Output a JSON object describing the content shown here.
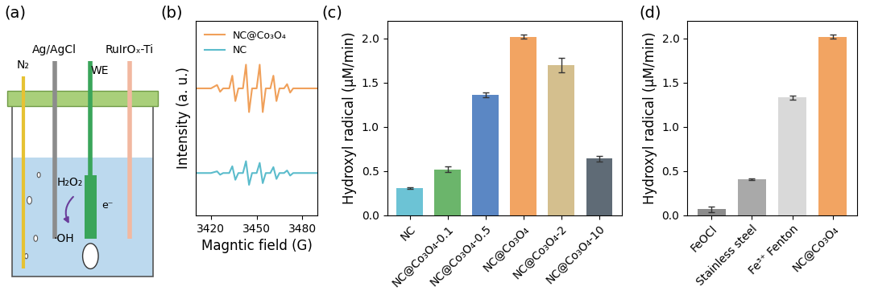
{
  "chart_data": [
    {
      "type": "diagram",
      "title": "(a)",
      "labels": {
        "gas": "N₂",
        "reference": "Ag/AgCl",
        "working": "WE",
        "counter": "RuIrOₓ-Ti",
        "reactant": "H₂O₂",
        "electron": "e⁻",
        "product": "·OH"
      }
    },
    {
      "type": "line",
      "title": "(b)",
      "x_label": "Magntic field (G)",
      "y_label": "Intensity (a. u.)",
      "x": [
        3410,
        3420,
        3424,
        3426,
        3428,
        3432,
        3434,
        3436,
        3438,
        3441,
        3443,
        3445,
        3447,
        3450,
        3452,
        3454,
        3456,
        3459,
        3461,
        3463,
        3465,
        3468,
        3470,
        3472,
        3474,
        3480,
        3490
      ],
      "series": [
        {
          "name": "NC@Co₃O₄",
          "color": "#f0a05a",
          "values": [
            1.0,
            1.0,
            1.04,
            0.96,
            1.0,
            1.0,
            1.15,
            0.85,
            1.0,
            1.0,
            1.28,
            0.72,
            1.0,
            1.0,
            1.28,
            0.72,
            1.0,
            1.0,
            1.15,
            0.85,
            1.0,
            1.0,
            1.05,
            0.95,
            1.0,
            1.0,
            1.0
          ]
        },
        {
          "name": "NC",
          "color": "#5bbccc",
          "values": [
            0.0,
            0.0,
            0.02,
            -0.02,
            0.0,
            0.0,
            0.08,
            -0.08,
            0.0,
            0.0,
            0.14,
            -0.14,
            0.0,
            0.0,
            0.12,
            -0.12,
            0.0,
            0.0,
            0.07,
            -0.07,
            0.0,
            0.0,
            0.03,
            -0.03,
            0.0,
            0.0,
            0.0
          ]
        }
      ],
      "xlim": [
        3410,
        3490
      ],
      "xticks": [
        3420,
        3450,
        3480
      ],
      "ylim": [
        -0.5,
        1.8
      ],
      "tick_labels": "x",
      "legend": "upper left"
    },
    {
      "type": "bar",
      "title": "(c)",
      "y_label": "Hydroxyl radical (μM/min)",
      "categories": [
        "NC",
        "NC@Co₃O₄-0.1",
        "NC@Co₃O₄-0.5",
        "NC@Co₃O₄",
        "NC@Co₃O₄-2",
        "NC@Co₃O₄-10"
      ],
      "values": [
        0.31,
        0.52,
        1.36,
        2.02,
        1.7,
        0.64
      ],
      "errors": [
        0.01,
        0.03,
        0.03,
        0.02,
        0.08,
        0.03
      ],
      "colors": [
        "#6cc3d5",
        "#6bb56b",
        "#5b87c4",
        "#f2a462",
        "#d4bf8e",
        "#5f6b76"
      ],
      "ylim": [
        0,
        2.2
      ],
      "yticks": [
        {
          "value": 0,
          "label": "0.0"
        },
        {
          "value": 0.5,
          "label": "0.5"
        },
        {
          "value": 1,
          "label": "1.0"
        },
        {
          "value": 1.5,
          "label": "1.5"
        },
        {
          "value": 2,
          "label": "2.0"
        }
      ]
    },
    {
      "type": "bar",
      "title": "(d)",
      "y_label": "Hydroxyl radical (μM/min)",
      "categories": [
        "FeOCl",
        "Stainless steel",
        "Fe³⁺ Fenton",
        "NC@Co₃O₄"
      ],
      "values": [
        0.07,
        0.41,
        1.33,
        2.02
      ],
      "errors": [
        0.03,
        0.01,
        0.02,
        0.02
      ],
      "colors": [
        "#8c8c8c",
        "#a9a9a9",
        "#d9d9d9",
        "#f2a462"
      ],
      "ylim": [
        0,
        2.2
      ],
      "yticks": [
        {
          "value": 0,
          "label": "0.0"
        },
        {
          "value": 0.5,
          "label": "0.5"
        },
        {
          "value": 1,
          "label": "1.0"
        },
        {
          "value": 1.5,
          "label": "1.5"
        },
        {
          "value": 2,
          "label": "2.0"
        }
      ]
    }
  ]
}
